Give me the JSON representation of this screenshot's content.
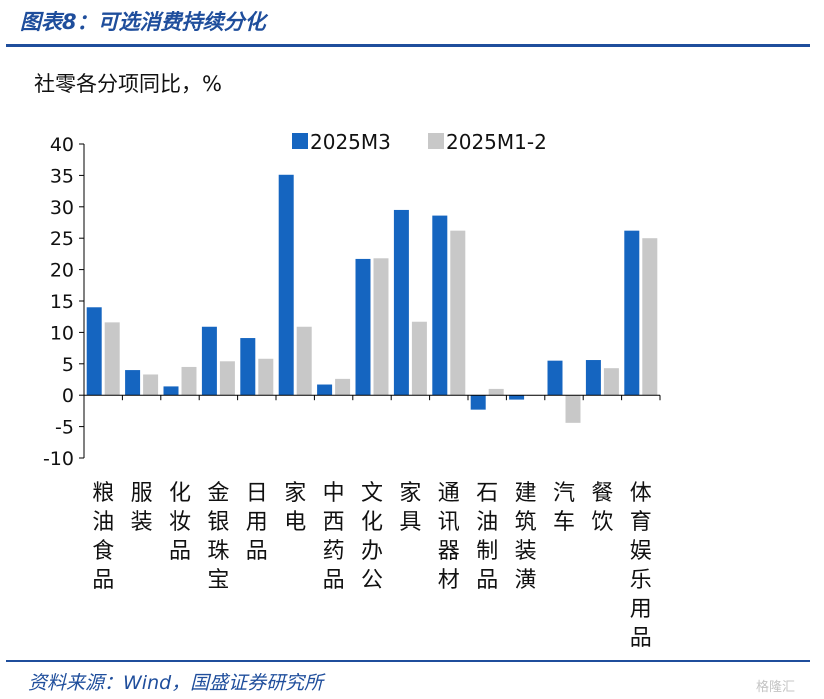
{
  "header": {
    "title": "图表8：可选消费持续分化"
  },
  "source_note": "资料来源：Wind，国盛证券研究所",
  "watermark": "格隆汇",
  "colors": {
    "brand": "#1f4e9c",
    "series_a": "#1565c0",
    "series_b": "#c8c8c8"
  },
  "chart_data": {
    "type": "bar",
    "title": "社零各分项同比，%",
    "categories": [
      "粮油食品",
      "服装",
      "化妆品",
      "金银珠宝",
      "日用品",
      "家电",
      "中西药品",
      "文化办公",
      "家具",
      "通讯器材",
      "石油制品",
      "建筑装潢",
      "汽车",
      "餐饮",
      "体育娱乐用品"
    ],
    "series": [
      {
        "name": "2025M3",
        "values": [
          14.0,
          4.0,
          1.4,
          10.9,
          9.1,
          35.1,
          1.7,
          21.7,
          29.5,
          28.6,
          -2.3,
          -0.7,
          5.5,
          5.6,
          26.2
        ]
      },
      {
        "name": "2025M1-2",
        "values": [
          11.6,
          3.3,
          4.5,
          5.4,
          5.8,
          10.9,
          2.6,
          21.8,
          11.7,
          26.2,
          1.0,
          0.0,
          -4.4,
          4.3,
          25.0
        ]
      }
    ],
    "ylim": [
      -10,
      40
    ],
    "yticks": [
      40,
      35,
      30,
      25,
      20,
      15,
      10,
      5,
      0,
      -5,
      -10
    ],
    "grid": false,
    "legend_position": "top-right"
  }
}
